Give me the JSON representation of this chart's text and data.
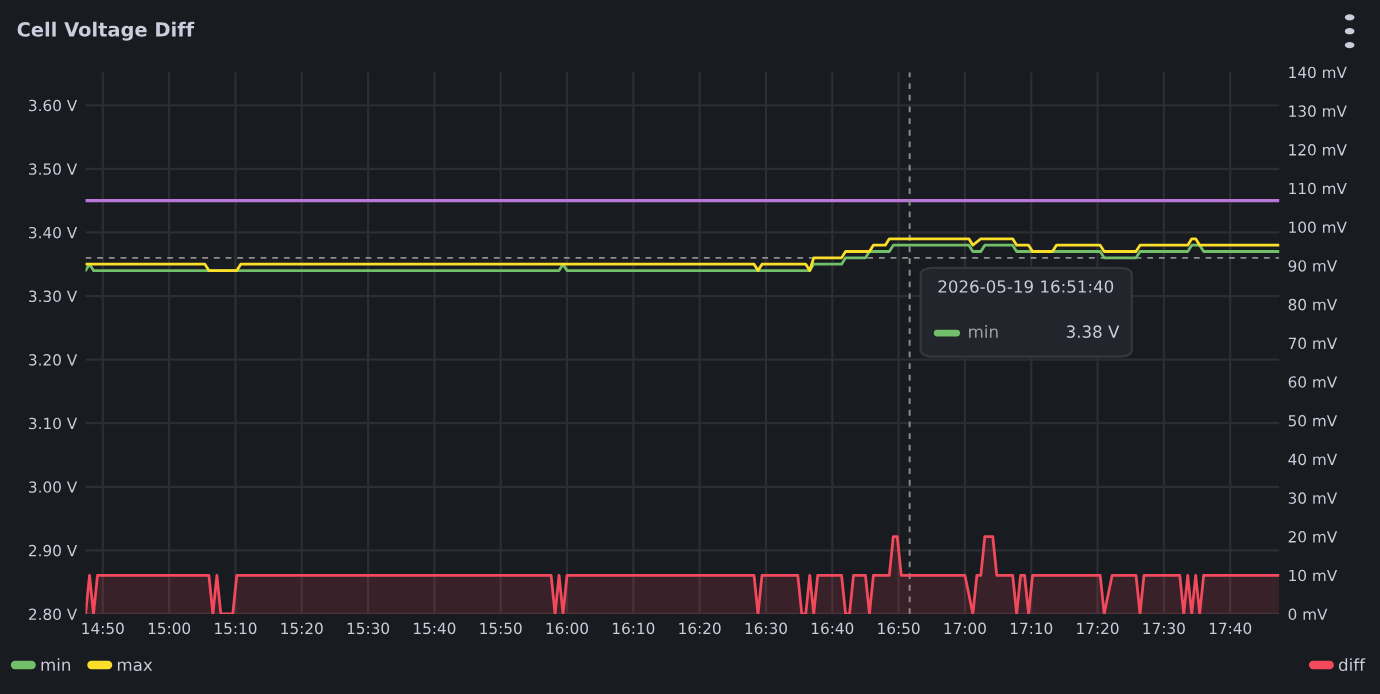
{
  "chart_data": {
    "type": "line",
    "title": "Cell Voltage Diff",
    "xlim": [
      14.79,
      17.79
    ],
    "xticks": [
      {
        "value": 14.8333,
        "label": "14:50"
      },
      {
        "value": 15.0,
        "label": "15:00"
      },
      {
        "value": 15.1667,
        "label": "15:10"
      },
      {
        "value": 15.3333,
        "label": "15:20"
      },
      {
        "value": 15.5,
        "label": "15:30"
      },
      {
        "value": 15.6667,
        "label": "15:40"
      },
      {
        "value": 15.8333,
        "label": "15:50"
      },
      {
        "value": 16.0,
        "label": "16:00"
      },
      {
        "value": 16.1667,
        "label": "16:10"
      },
      {
        "value": 16.3333,
        "label": "16:20"
      },
      {
        "value": 16.5,
        "label": "16:30"
      },
      {
        "value": 16.6667,
        "label": "16:40"
      },
      {
        "value": 16.8333,
        "label": "16:50"
      },
      {
        "value": 17.0,
        "label": "17:00"
      },
      {
        "value": 17.1667,
        "label": "17:10"
      },
      {
        "value": 17.3333,
        "label": "17:20"
      },
      {
        "value": 17.5,
        "label": "17:30"
      },
      {
        "value": 17.6667,
        "label": "17:40"
      }
    ],
    "ylim": [
      2.8,
      3.652
    ],
    "yticks": [
      {
        "value": 2.8,
        "label": "2.80 V"
      },
      {
        "value": 2.9,
        "label": "2.90 V"
      },
      {
        "value": 3.0,
        "label": "3.00 V"
      },
      {
        "value": 3.1,
        "label": "3.10 V"
      },
      {
        "value": 3.2,
        "label": "3.20 V"
      },
      {
        "value": 3.3,
        "label": "3.30 V"
      },
      {
        "value": 3.4,
        "label": "3.40 V"
      },
      {
        "value": 3.5,
        "label": "3.50 V"
      },
      {
        "value": 3.6,
        "label": "3.60 V"
      }
    ],
    "y2lim": [
      0,
      140
    ],
    "y2ticks": [
      {
        "value": 0,
        "label": "0 mV"
      },
      {
        "value": 10,
        "label": "10 mV"
      },
      {
        "value": 20,
        "label": "20 mV"
      },
      {
        "value": 30,
        "label": "30 mV"
      },
      {
        "value": 40,
        "label": "40 mV"
      },
      {
        "value": 50,
        "label": "50 mV"
      },
      {
        "value": 60,
        "label": "60 mV"
      },
      {
        "value": 70,
        "label": "70 mV"
      },
      {
        "value": 80,
        "label": "80 mV"
      },
      {
        "value": 90,
        "label": "90 mV"
      },
      {
        "value": 100,
        "label": "100 mV"
      },
      {
        "value": 110,
        "label": "110 mV"
      },
      {
        "value": 120,
        "label": "120 mV"
      },
      {
        "value": 130,
        "label": "130 mV"
      },
      {
        "value": 140,
        "label": "140 mV"
      }
    ],
    "grid": true,
    "legend": "bottom",
    "series": [
      {
        "name": "min",
        "color": "#73bf69",
        "x": [
          14.79,
          14.8,
          14.81,
          15.98,
          15.99,
          16.0,
          16.61,
          16.62,
          16.69,
          16.7,
          16.75,
          16.76,
          16.81,
          16.82,
          17.01,
          17.02,
          17.04,
          17.05,
          17.12,
          17.13,
          17.34,
          17.35,
          17.43,
          17.44,
          17.56,
          17.57,
          17.59,
          17.6,
          17.79
        ],
        "values": [
          3.34,
          3.35,
          3.34,
          3.34,
          3.35,
          3.34,
          3.34,
          3.35,
          3.35,
          3.36,
          3.36,
          3.37,
          3.37,
          3.38,
          3.38,
          3.37,
          3.37,
          3.38,
          3.38,
          3.37,
          3.37,
          3.36,
          3.36,
          3.37,
          3.37,
          3.38,
          3.38,
          3.37,
          3.37
        ]
      },
      {
        "name": "max",
        "color": "#fade2a",
        "x": [
          14.79,
          15.09,
          15.1,
          15.17,
          15.18,
          16.47,
          16.48,
          16.49,
          16.6,
          16.61,
          16.62,
          16.69,
          16.7,
          16.76,
          16.77,
          16.8,
          16.81,
          17.01,
          17.02,
          17.04,
          17.12,
          17.13,
          17.16,
          17.17,
          17.22,
          17.23,
          17.34,
          17.35,
          17.43,
          17.44,
          17.56,
          17.57,
          17.58,
          17.59,
          17.79
        ],
        "values": [
          3.35,
          3.35,
          3.34,
          3.34,
          3.35,
          3.35,
          3.34,
          3.35,
          3.35,
          3.34,
          3.36,
          3.36,
          3.37,
          3.37,
          3.38,
          3.38,
          3.39,
          3.39,
          3.38,
          3.39,
          3.39,
          3.38,
          3.38,
          3.37,
          3.37,
          3.38,
          3.38,
          3.37,
          3.37,
          3.38,
          3.38,
          3.39,
          3.39,
          3.38,
          3.38
        ]
      },
      {
        "name": "diff",
        "color": "#f2495c",
        "type": "area",
        "axis": "y2",
        "x": [
          14.79,
          14.8,
          14.81,
          14.82,
          15.1,
          15.11,
          15.12,
          15.13,
          15.16,
          15.17,
          15.96,
          15.97,
          15.98,
          15.99,
          16.0,
          16.47,
          16.48,
          16.49,
          16.58,
          16.59,
          16.6,
          16.61,
          16.62,
          16.63,
          16.69,
          16.7,
          16.71,
          16.72,
          16.75,
          16.76,
          16.77,
          16.81,
          16.82,
          16.83,
          16.84,
          17.0,
          17.02,
          17.03,
          17.04,
          17.05,
          17.07,
          17.08,
          17.12,
          17.13,
          17.14,
          17.15,
          17.16,
          17.17,
          17.34,
          17.35,
          17.37,
          17.43,
          17.44,
          17.45,
          17.54,
          17.55,
          17.56,
          17.57,
          17.58,
          17.59,
          17.6,
          17.79
        ],
        "values": [
          0,
          10,
          0,
          10,
          10,
          0,
          10,
          0,
          0,
          10,
          10,
          0,
          10,
          0,
          10,
          10,
          0,
          10,
          10,
          0,
          0,
          10,
          0,
          10,
          10,
          0,
          0,
          10,
          10,
          0,
          10,
          10,
          20,
          20,
          10,
          10,
          0,
          10,
          10,
          20,
          20,
          10,
          10,
          0,
          10,
          10,
          0,
          10,
          10,
          0,
          10,
          10,
          0,
          10,
          10,
          0,
          10,
          0,
          10,
          0,
          10,
          10
        ]
      }
    ],
    "ref_lines": [
      {
        "axis": "y",
        "value": 3.45,
        "color": "#b877d9",
        "line_style": "solid"
      },
      {
        "axis": "x",
        "value": 16.8611,
        "color": "#8e8e8e",
        "line_style": "dashed"
      },
      {
        "axis": "y",
        "value": 3.36,
        "color": "#8e8e8e",
        "line_style": "dashed"
      }
    ],
    "annotations": [
      "2026-05-19 16:51:40",
      "min",
      "3.38 V"
    ]
  }
}
